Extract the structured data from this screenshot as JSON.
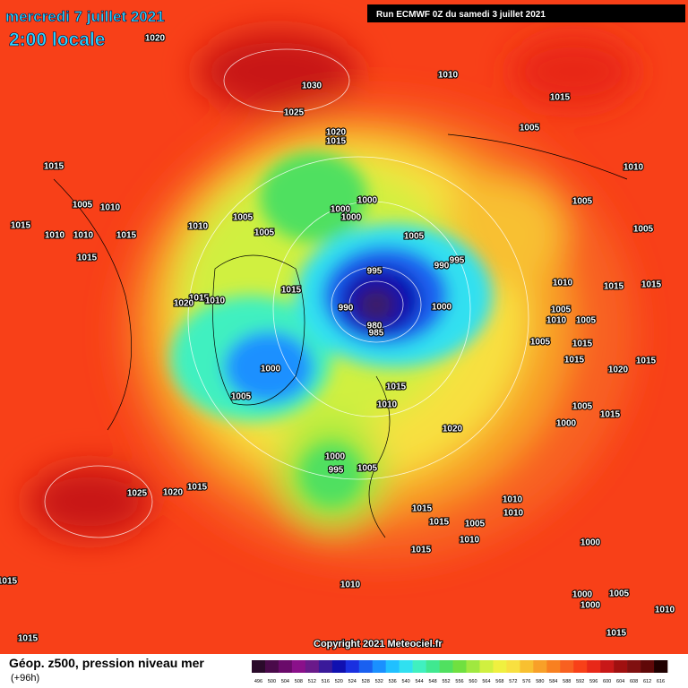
{
  "header": {
    "date": "mercredi 7 juillet 2021",
    "time": "2:00 locale",
    "run": "Run ECMWF 0Z du samedi 3 juillet 2021"
  },
  "copyright": "Copyright 2021 Meteociel.fr",
  "legend": {
    "title": "Géop. z500, pression niveau mer",
    "subtitle": "(+96h)",
    "levels": [
      496,
      500,
      504,
      508,
      512,
      516,
      520,
      524,
      528,
      532,
      536,
      540,
      544,
      548,
      552,
      556,
      560,
      564,
      568,
      572,
      576,
      580,
      584,
      588,
      592,
      596,
      600,
      604,
      608,
      612,
      616
    ],
    "colors": [
      "#2a0a2a",
      "#4a0a4a",
      "#6a0a6a",
      "#8a108a",
      "#6a1a8a",
      "#3a1a9a",
      "#1010b0",
      "#1a30e0",
      "#1a60f0",
      "#1a90ff",
      "#20c0ff",
      "#30e0f0",
      "#40f0c0",
      "#40e890",
      "#50e060",
      "#70e040",
      "#a0e840",
      "#d0f040",
      "#f0f040",
      "#f8e040",
      "#f8c030",
      "#f8a028",
      "#f88020",
      "#f86020",
      "#f84018",
      "#e82818",
      "#c81818",
      "#a01010",
      "#801010",
      "#600808",
      "#200000"
    ]
  },
  "isobars": [
    "1020",
    "1030",
    "1025",
    "1020",
    "1015",
    "1010",
    "1015",
    "1005",
    "1010",
    "1015",
    "1005",
    "1010",
    "1015",
    "1010",
    "1010",
    "1015",
    "1015",
    "1010",
    "1005",
    "1005",
    "1000",
    "1000",
    "1000",
    "1005",
    "1005",
    "1005",
    "995",
    "995",
    "990",
    "990",
    "1000",
    "980",
    "985",
    "1015",
    "1020",
    "1010",
    "1015",
    "1010",
    "1015",
    "1015",
    "1005",
    "1010",
    "1005",
    "1005",
    "1015",
    "1000",
    "1005",
    "1015",
    "1010",
    "1015",
    "1020",
    "1015",
    "1005",
    "1015",
    "1000",
    "1020",
    "1000",
    "995",
    "1005",
    "1025",
    "1020",
    "1015",
    "1010",
    "1015",
    "1015",
    "1010",
    "1005",
    "1010",
    "1015",
    "1000",
    "1010",
    "1015",
    "1000",
    "1005",
    "1000",
    "1010",
    "1015",
    "1015"
  ]
}
